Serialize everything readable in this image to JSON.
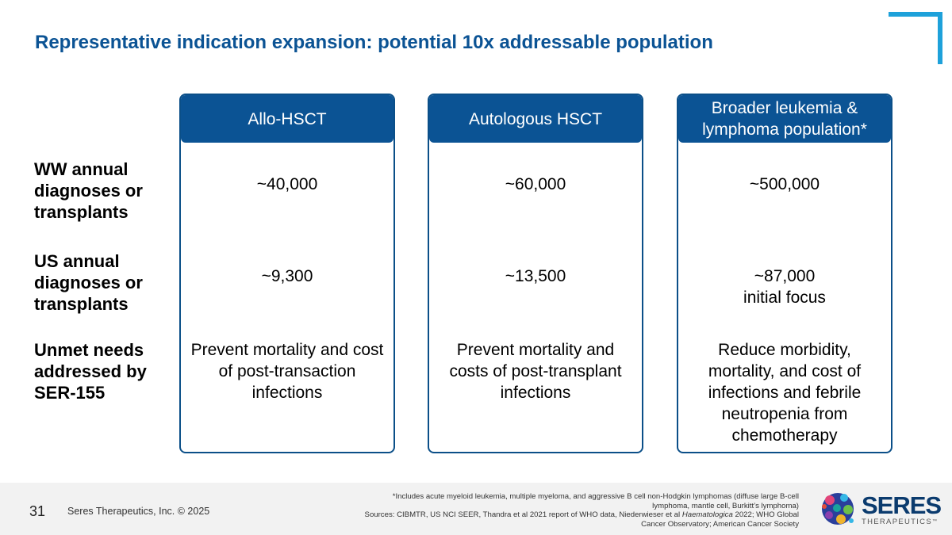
{
  "title": "Representative indication expansion: potential 10x addressable population",
  "row_labels": [
    "WW annual diagnoses or transplants",
    "US annual diagnoses or transplants",
    "Unmet needs addressed by SER-155"
  ],
  "columns": [
    {
      "header": "Allo-HSCT",
      "ww": "~40,000",
      "us": "~9,300",
      "us_note": "",
      "unmet": "Prevent mortality and cost of post-transaction infections"
    },
    {
      "header": "Autologous HSCT",
      "ww": "~60,000",
      "us": "~13,500",
      "us_note": "",
      "unmet": "Prevent mortality and costs of post-transplant infections"
    },
    {
      "header": "Broader leukemia & lymphoma population*",
      "ww": "~500,000",
      "us": "~87,000",
      "us_note": "initial focus",
      "unmet": "Reduce morbidity, mortality, and cost of infections and febrile neutropenia from chemotherapy"
    }
  ],
  "footer": {
    "page_number": "31",
    "copyright": "Seres Therapeutics, Inc. © 2025",
    "footnote_line": "*Includes acute myeloid leukemia, multiple myeloma, and aggressive B cell non-Hodgkin lymphomas (diffuse large B-cell lymphoma, mantle cell, Burkitt’s lymphoma)",
    "sources_prefix": "Sources:  CIBMTR, US NCI SEER, Thandra et al 2021 report of WHO data, Niederwieser et al ",
    "sources_journal": "Haematologica",
    "sources_suffix": " 2022; WHO Global Cancer Observatory; American Cancer Society"
  },
  "logo": {
    "name": "SERES",
    "sub": "THERAPEUTICS",
    "tm": "™"
  },
  "colors": {
    "primary": "#0b5394",
    "accent": "#1ea1da",
    "footer_bg": "#f2f2f2"
  }
}
